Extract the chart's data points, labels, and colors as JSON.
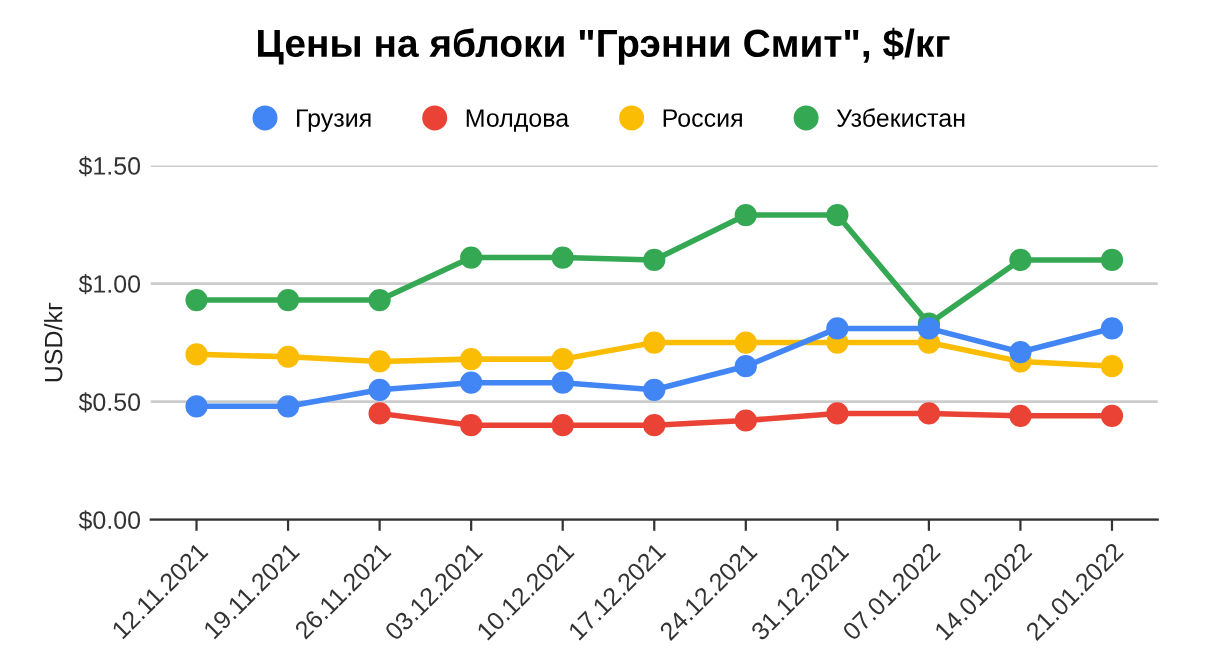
{
  "chart_data": {
    "type": "line",
    "title": "Цены на яблоки \"Грэнни Смит\", $/кг",
    "ylabel": "USD/kг",
    "categories": [
      "12.11.2021",
      "19.11.2021",
      "26.11.2021",
      "03.12.2021",
      "10.12.2021",
      "17.12.2021",
      "24.12.2021",
      "31.12.2021",
      "07.01.2022",
      "14.01.2022",
      "21.01.2022"
    ],
    "series": [
      {
        "name": "Грузия",
        "color": "#4285f4",
        "values": [
          0.48,
          0.48,
          0.55,
          0.58,
          0.58,
          0.55,
          0.65,
          0.81,
          0.81,
          0.71,
          0.81
        ]
      },
      {
        "name": "Молдова",
        "color": "#ea4335",
        "values": [
          null,
          null,
          0.45,
          0.4,
          0.4,
          0.4,
          0.42,
          0.45,
          0.45,
          0.44,
          0.44
        ]
      },
      {
        "name": "Россия",
        "color": "#fbbc04",
        "values": [
          0.7,
          0.69,
          0.67,
          0.68,
          0.68,
          0.75,
          0.75,
          0.75,
          0.75,
          0.67,
          0.65
        ]
      },
      {
        "name": "Узбекистан",
        "color": "#34a853",
        "values": [
          0.93,
          0.93,
          0.93,
          1.11,
          1.11,
          1.1,
          1.29,
          1.29,
          0.83,
          1.1,
          1.1
        ]
      }
    ],
    "ylim": [
      0,
      1.5
    ],
    "yticks": [
      {
        "value": 0,
        "label": "$0.00"
      },
      {
        "value": 0.5,
        "label": "$0.50"
      },
      {
        "value": 1.0,
        "label": "$1.00"
      },
      {
        "value": 1.5,
        "label": "$1.50"
      }
    ],
    "grid": "y",
    "legend": "top",
    "marker": "circle",
    "line_style": "solid"
  }
}
